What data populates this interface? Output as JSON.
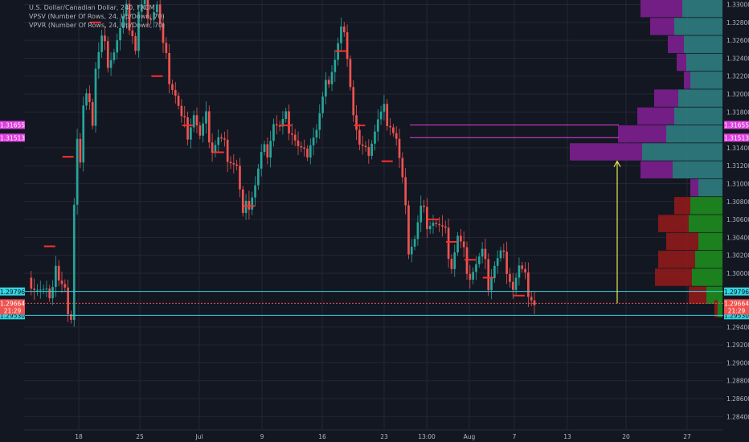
{
  "legend": {
    "title": "U.S. Dollar/Canadian Dollar, 240, FXCM",
    "vpsv": "VPSV (Number Of Rows, 24, Up/Down, 70)",
    "vpvr": "VPVR (Number Of Rows, 24, Up/Down, 70)"
  },
  "colors": {
    "background": "#131722",
    "grid": "#242733",
    "axis_text": "#b2b5be",
    "candle_up": "#26a69a",
    "candle_down": "#ef5350",
    "ma_marker": "#ff2d2d",
    "vp_up_top": "#2f7d7f",
    "vp_down_top": "#7d1f8f",
    "vp_up_bottom": "#1e8c1e",
    "vp_down_bottom": "#8f1a1a",
    "level_cyan": "#35d4e0",
    "level_magenta": "#e040e0",
    "arrow": "#e8e84a"
  },
  "chart_data": {
    "type": "candlestick",
    "title": "U.S. Dollar/Canadian Dollar, 240, FXCM",
    "ylim": [
      1.2825,
      1.3305
    ],
    "y_ticks": [
      "1.33000",
      "1.32800",
      "1.32600",
      "1.32400",
      "1.32200",
      "1.32000",
      "1.31800",
      "1.31400",
      "1.31200",
      "1.31000",
      "1.30800",
      "1.30600",
      "1.30400",
      "1.30200",
      "1.30000",
      "1.29400",
      "1.29200",
      "1.29000",
      "1.28800",
      "1.28600",
      "1.28400"
    ],
    "x_ticks": [
      "18",
      "25",
      "Jul",
      "9",
      "16",
      "23",
      "13:00",
      "Aug",
      "7",
      "13",
      "20",
      "27"
    ],
    "close_path": [
      [
        0,
        1.2995
      ],
      [
        2,
        1.2985
      ],
      [
        4,
        1.2978
      ],
      [
        6,
        1.2972
      ],
      [
        8,
        1.299
      ],
      [
        9,
        1.301
      ],
      [
        10,
        1.299
      ],
      [
        12,
        1.2975
      ],
      [
        14,
        1.2955
      ],
      [
        15,
        1.308
      ],
      [
        16,
        1.315
      ],
      [
        17,
        1.312
      ],
      [
        18,
        1.318
      ],
      [
        20,
        1.32
      ],
      [
        21,
        1.317
      ],
      [
        22,
        1.323
      ],
      [
        24,
        1.326
      ],
      [
        26,
        1.324
      ],
      [
        28,
        1.325
      ],
      [
        30,
        1.327
      ],
      [
        32,
        1.329
      ],
      [
        34,
        1.327
      ],
      [
        35,
        1.325
      ],
      [
        36,
        1.329
      ],
      [
        38,
        1.33
      ],
      [
        40,
        1.329
      ],
      [
        42,
        1.33
      ],
      [
        44,
        1.325
      ],
      [
        46,
        1.322
      ],
      [
        48,
        1.32
      ],
      [
        50,
        1.317
      ],
      [
        52,
        1.316
      ],
      [
        54,
        1.318
      ],
      [
        56,
        1.315
      ],
      [
        58,
        1.317
      ],
      [
        60,
        1.314
      ],
      [
        62,
        1.315
      ],
      [
        64,
        1.314
      ],
      [
        66,
        1.313
      ],
      [
        68,
        1.312
      ],
      [
        70,
        1.306
      ],
      [
        72,
        1.308
      ],
      [
        74,
        1.31
      ],
      [
        76,
        1.313
      ],
      [
        78,
        1.314
      ],
      [
        80,
        1.317
      ],
      [
        82,
        1.316
      ],
      [
        84,
        1.317
      ],
      [
        86,
        1.316
      ],
      [
        88,
        1.314
      ],
      [
        90,
        1.313
      ],
      [
        92,
        1.315
      ],
      [
        94,
        1.316
      ],
      [
        96,
        1.319
      ],
      [
        98,
        1.322
      ],
      [
        100,
        1.324
      ],
      [
        102,
        1.327
      ],
      [
        104,
        1.325
      ],
      [
        106,
        1.318
      ],
      [
        108,
        1.314
      ],
      [
        110,
        1.313
      ],
      [
        112,
        1.315
      ],
      [
        114,
        1.317
      ],
      [
        116,
        1.318
      ],
      [
        118,
        1.317
      ],
      [
        120,
        1.315
      ],
      [
        122,
        1.31
      ],
      [
        124,
        1.303
      ],
      [
        126,
        1.304
      ],
      [
        128,
        1.307
      ],
      [
        130,
        1.306
      ],
      [
        132,
        1.306
      ],
      [
        134,
        1.305
      ],
      [
        136,
        1.304
      ],
      [
        138,
        1.301
      ],
      [
        140,
        1.304
      ],
      [
        142,
        1.302
      ],
      [
        144,
        1.3
      ],
      [
        146,
        1.301
      ],
      [
        148,
        1.302
      ],
      [
        150,
        1.299
      ],
      [
        152,
        1.301
      ],
      [
        154,
        1.302
      ],
      [
        156,
        1.301
      ],
      [
        158,
        1.2985
      ],
      [
        160,
        1.3005
      ],
      [
        162,
        1.299
      ],
      [
        164,
        1.2975
      ],
      [
        165,
        1.2966
      ]
    ],
    "bars_total": 165,
    "ma_markers": [
      [
        7,
        1.303
      ],
      [
        13,
        1.313
      ],
      [
        22,
        1.328
      ],
      [
        42,
        1.322
      ],
      [
        52,
        1.3165
      ],
      [
        62,
        1.3135
      ],
      [
        72,
        1.3075
      ],
      [
        84,
        1.3165
      ],
      [
        102,
        1.3248
      ],
      [
        108,
        1.3165
      ],
      [
        117,
        1.3125
      ],
      [
        132,
        1.306
      ],
      [
        138,
        1.3035
      ],
      [
        144,
        1.3015
      ],
      [
        150,
        1.2995
      ],
      [
        160,
        1.2975
      ]
    ],
    "volume_profile_top": {
      "rows": [
        {
          "price": 1.3295,
          "up": 50,
          "down": 52
        },
        {
          "price": 1.3275,
          "up": 60,
          "down": 30
        },
        {
          "price": 1.3255,
          "up": 48,
          "down": 20
        },
        {
          "price": 1.3235,
          "up": 45,
          "down": 12
        },
        {
          "price": 1.3215,
          "up": 40,
          "down": 8
        },
        {
          "price": 1.3195,
          "up": 55,
          "down": 30
        },
        {
          "price": 1.3175,
          "up": 60,
          "down": 46
        },
        {
          "price": 1.3155,
          "up": 70,
          "down": 60
        },
        {
          "price": 1.3135,
          "up": 100,
          "down": 90
        },
        {
          "price": 1.3115,
          "up": 62,
          "down": 40
        },
        {
          "price": 1.3095,
          "up": 30,
          "down": 10
        }
      ]
    },
    "volume_profile_bottom": {
      "rows": [
        {
          "price": 1.3075,
          "up": 40,
          "down": 20
        },
        {
          "price": 1.3055,
          "up": 42,
          "down": 38
        },
        {
          "price": 1.3035,
          "up": 30,
          "down": 40
        },
        {
          "price": 1.3015,
          "up": 34,
          "down": 46
        },
        {
          "price": 1.2995,
          "up": 38,
          "down": 46
        },
        {
          "price": 1.2975,
          "up": 20,
          "down": 22
        },
        {
          "price": 1.296,
          "up": 6,
          "down": 4
        }
      ]
    },
    "levels": [
      {
        "label": "1.31655",
        "price": 1.31655,
        "kind": "magenta"
      },
      {
        "label": "1.31513",
        "price": 1.31513,
        "kind": "magenta"
      },
      {
        "label": "1.29796",
        "price": 1.29796,
        "kind": "cyan"
      },
      {
        "label": "1.29530",
        "price": 1.2953,
        "kind": "cyan"
      }
    ],
    "current_price": {
      "label": "1.29664",
      "time": "21:29",
      "price": 1.29664
    },
    "arrow": {
      "from_price": 1.29664,
      "to_price": 1.3125,
      "x_bar": 200
    }
  }
}
